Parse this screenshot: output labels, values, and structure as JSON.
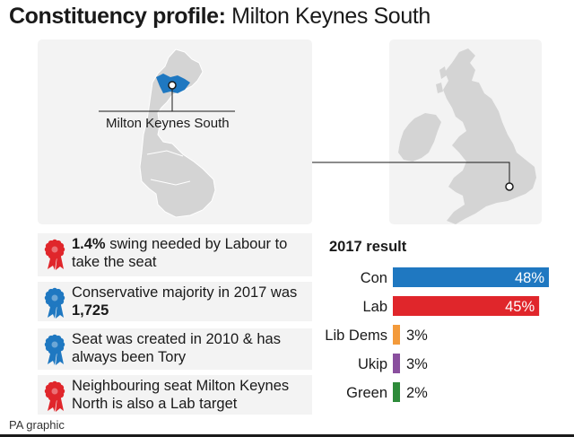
{
  "header": {
    "title_bold": "Constituency profile:",
    "title_light": "Milton Keynes South"
  },
  "map": {
    "county_label": "Milton Keynes South",
    "seat_color": "#1f78c1",
    "land_color": "#d4d4d4",
    "panel_color": "#f3f3f3"
  },
  "facts": [
    {
      "rosette": "labour",
      "color": "#e0262b",
      "parts": [
        {
          "b": "1.4%"
        },
        {
          "t": " swing needed by Labour to take the seat"
        }
      ]
    },
    {
      "rosette": "conservative",
      "color": "#1f78c1",
      "parts": [
        {
          "t": "Conservative majority in 2017 was "
        },
        {
          "b": "1,725"
        }
      ]
    },
    {
      "rosette": "conservative",
      "color": "#1f78c1",
      "parts": [
        {
          "t": "Seat was created in 2010 & has always been Tory"
        }
      ]
    },
    {
      "rosette": "labour",
      "color": "#e0262b",
      "parts": [
        {
          "t": "Neighbouring seat Milton Keynes North is also a Lab target"
        }
      ]
    }
  ],
  "chart_data": {
    "type": "bar",
    "orientation": "horizontal",
    "title": "2017 result",
    "categories": [
      "Con",
      "Lab",
      "Lib Dems",
      "Ukip",
      "Green"
    ],
    "values": [
      48,
      45,
      3,
      3,
      2
    ],
    "value_labels": [
      "48%",
      "45%",
      "3%",
      "3%",
      "2%"
    ],
    "colors": [
      "#1f78c1",
      "#e0262b",
      "#f39a3b",
      "#8a4f9e",
      "#2e8b3a"
    ],
    "xlim": [
      0,
      48
    ],
    "grid": false
  },
  "footer": {
    "credit": "PA graphic"
  }
}
